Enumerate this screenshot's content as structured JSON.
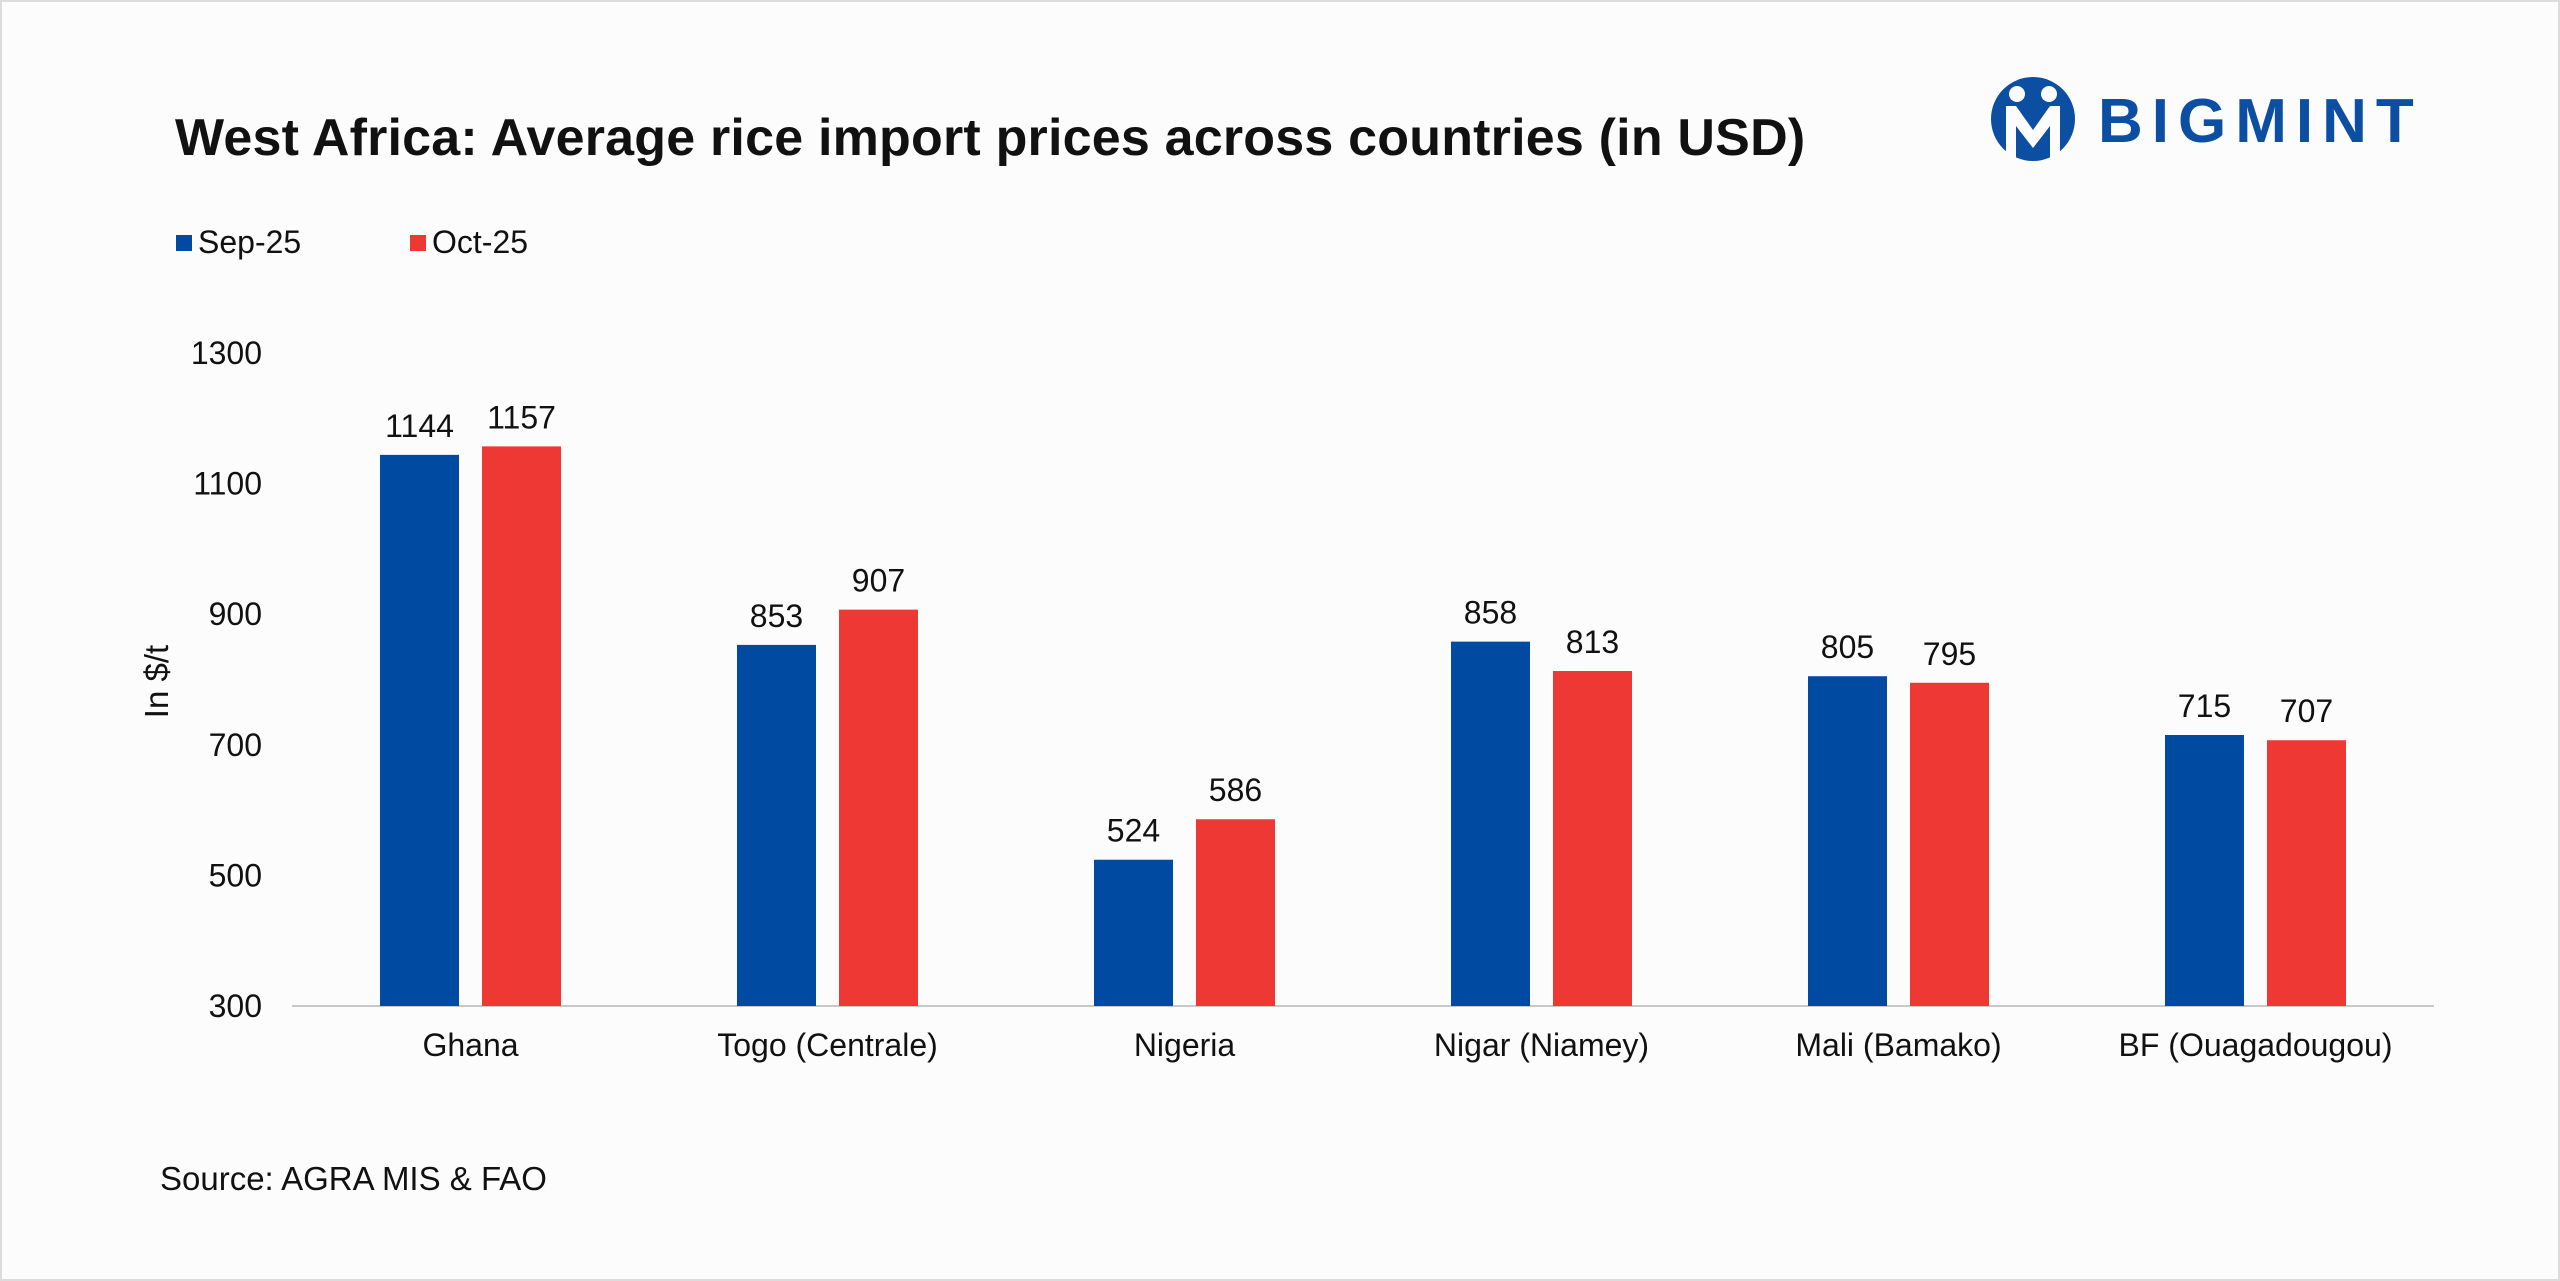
{
  "title": "West Africa: Average rice import prices across countries (in USD)",
  "brand": {
    "name": "BIGMINT",
    "color": "#0b4ea2"
  },
  "source": "Source: AGRA MIS & FAO",
  "chart_data": {
    "type": "bar",
    "title": "West Africa: Average rice import prices across countries (in USD)",
    "ylabel": "In $/t",
    "xlabel": "",
    "ylim": [
      300,
      1300
    ],
    "yticks": [
      300,
      500,
      700,
      900,
      1100,
      1300
    ],
    "grid": false,
    "legend_position": "top-left",
    "categories": [
      "Ghana",
      "Togo (Centrale)",
      "Nigeria",
      "Nigar (Niamey)",
      "Mali (Bamako)",
      "BF (Ouagadougou)"
    ],
    "series": [
      {
        "name": "Sep-25",
        "color": "#004aa1",
        "values": [
          1144,
          853,
          524,
          858,
          805,
          715
        ]
      },
      {
        "name": "Oct-25",
        "color": "#ee3833",
        "values": [
          1157,
          907,
          586,
          813,
          795,
          707
        ]
      }
    ]
  }
}
